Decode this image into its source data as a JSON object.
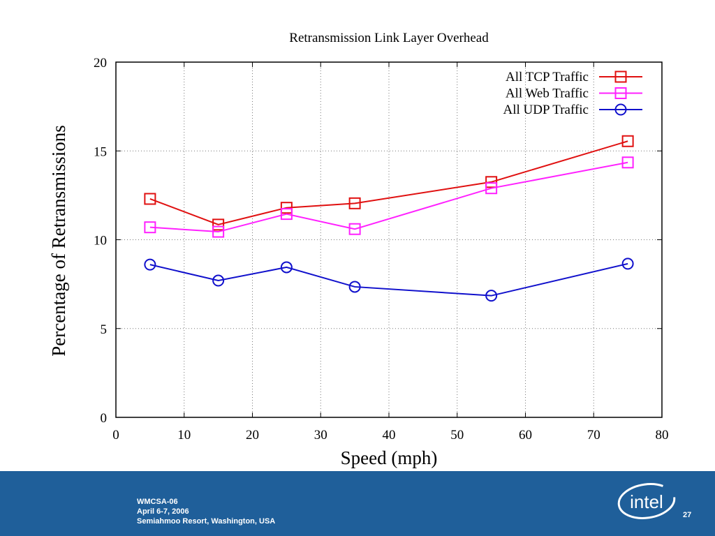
{
  "chart_data": {
    "type": "line",
    "title": "Retransmission Link Layer Overhead",
    "xlabel": "Speed (mph)",
    "ylabel": "Percentage of Retransmissions",
    "xlim": [
      0,
      80
    ],
    "ylim": [
      0,
      20
    ],
    "xticks": [
      "0",
      "10",
      "20",
      "30",
      "40",
      "50",
      "60",
      "70",
      "80"
    ],
    "yticks": [
      "0",
      "5",
      "10",
      "15",
      "20"
    ],
    "grid": true,
    "legend_position": "top-right",
    "x": [
      5,
      15,
      25,
      35,
      55,
      75
    ],
    "series": [
      {
        "name": "All TCP Traffic",
        "values": [
          12.3,
          10.85,
          11.8,
          12.05,
          13.25,
          15.55
        ],
        "color": "#e01010",
        "marker": "square"
      },
      {
        "name": "All Web Traffic",
        "values": [
          10.7,
          10.45,
          11.45,
          10.6,
          12.9,
          14.35
        ],
        "color": "#ff20ff",
        "marker": "square"
      },
      {
        "name": "All UDP Traffic",
        "values": [
          8.6,
          7.7,
          8.45,
          7.35,
          6.85,
          8.65
        ],
        "color": "#1010cc",
        "marker": "circle"
      }
    ]
  },
  "footer": {
    "line1": "WMCSA-06",
    "line2": "April 6-7, 2006",
    "line3": "Semiahmoo Resort, Washington, USA",
    "page_number": "27",
    "logo_text": "intel",
    "background": "#1f5f9a"
  }
}
